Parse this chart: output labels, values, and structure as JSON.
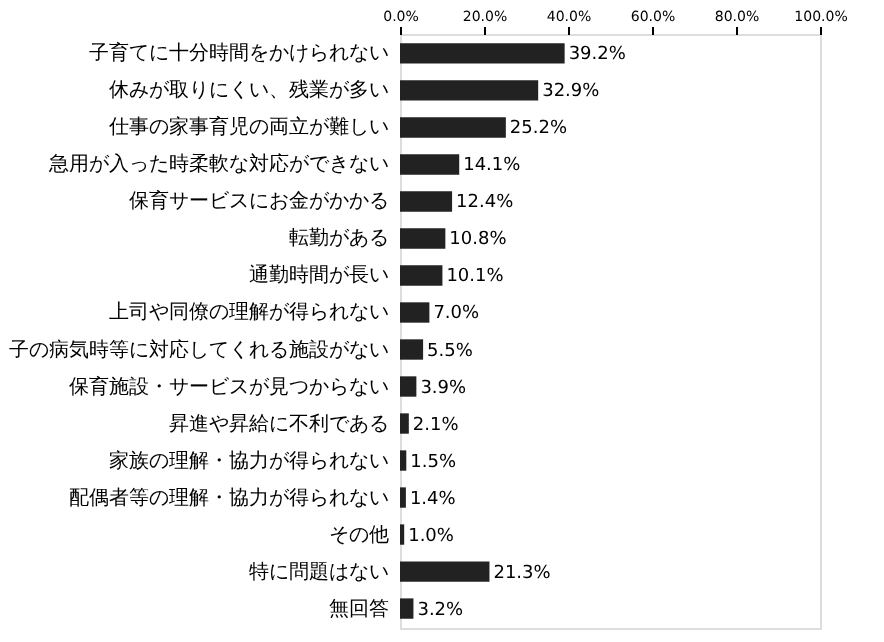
{
  "chart_data": {
    "type": "bar",
    "orientation": "horizontal",
    "categories": [
      "子育てに十分時間をかけられない",
      "休みが取りにくい、残業が多い",
      "仕事の家事育児の両立が難しい",
      "急用が入った時柔軟な対応ができない",
      "保育サービスにお金がかかる",
      "転勤がある",
      "通勤時間が長い",
      "上司や同僚の理解が得られない",
      "子の病気時等に対応してくれる施設がない",
      "保育施設・サービスが見つからない",
      "昇進や昇給に不利である",
      "家族の理解・協力が得られない",
      "配偶者等の理解・協力が得られない",
      "その他",
      "特に問題はない",
      "無回答"
    ],
    "values": [
      39.2,
      32.9,
      25.2,
      14.1,
      12.4,
      10.8,
      10.1,
      7.0,
      5.5,
      3.9,
      2.1,
      1.5,
      1.4,
      1.0,
      21.3,
      3.2
    ],
    "value_labels": [
      "39.2%",
      "32.9%",
      "25.2%",
      "14.1%",
      "12.4%",
      "10.8%",
      "10.1%",
      "7.0%",
      "5.5%",
      "3.9%",
      "2.1%",
      "1.5%",
      "1.4%",
      "1.0%",
      "21.3%",
      "3.2%"
    ],
    "color": "#222222",
    "xlim": [
      0,
      100
    ],
    "xticks": [
      {
        "value": 0,
        "label": "0.0%"
      },
      {
        "value": 20,
        "label": "20.0%"
      },
      {
        "value": 40,
        "label": "40.0%"
      },
      {
        "value": 60,
        "label": "60.0%"
      },
      {
        "value": 80,
        "label": "80.0%"
      },
      {
        "value": 100,
        "label": "100.0%"
      }
    ],
    "grid": false
  }
}
